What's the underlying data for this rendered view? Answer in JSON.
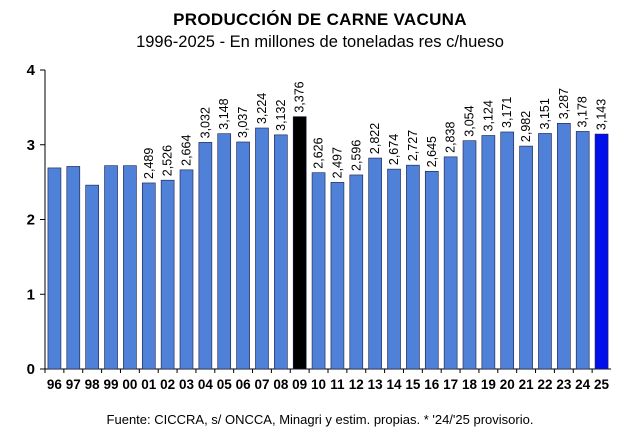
{
  "chart_data": {
    "type": "bar",
    "title": "PRODUCCIÓN DE CARNE VACUNA",
    "subtitle": "1996-2025 - En millones de toneladas res c/hueso",
    "source": "Fuente: CICCRA, s/ ONCCA, Minagri y estim. propias. * '24/'25 provisorio.",
    "categories": [
      "96",
      "97",
      "98",
      "99",
      "00",
      "01",
      "02",
      "03",
      "04",
      "05",
      "06",
      "07",
      "08",
      "09",
      "10",
      "11",
      "12",
      "13",
      "14",
      "15",
      "16",
      "17",
      "18",
      "19",
      "20",
      "21",
      "22",
      "23",
      "24",
      "25"
    ],
    "values": [
      2.69,
      2.71,
      2.46,
      2.72,
      2.72,
      2.489,
      2.526,
      2.664,
      3.032,
      3.148,
      3.037,
      3.224,
      3.132,
      3.376,
      2.626,
      2.497,
      2.596,
      2.822,
      2.674,
      2.727,
      2.645,
      2.838,
      3.054,
      3.124,
      3.171,
      2.982,
      3.151,
      3.287,
      3.178,
      3.143
    ],
    "data_labels": [
      "",
      "",
      "",
      "",
      "",
      "2,489",
      "2,526",
      "2,664",
      "3,032",
      "3,148",
      "3,037",
      "3,224",
      "3,132",
      "3,376",
      "2,626",
      "2,497",
      "2,596",
      "2,822",
      "2,674",
      "2,727",
      "2,645",
      "2,838",
      "3,054",
      "3,124",
      "3,171",
      "2,982",
      "3,151",
      "3,287",
      "3,178",
      "3,143"
    ],
    "ylim": [
      0,
      4
    ],
    "yticks": [
      "0",
      "1",
      "2",
      "3",
      "4"
    ],
    "xlabel": "",
    "ylabel": "",
    "grid": false,
    "colors": {
      "default": "#4f81d8",
      "highlight_09": "#000000",
      "highlight_25": "#0010e8",
      "edge": "#1a1a4a"
    }
  }
}
